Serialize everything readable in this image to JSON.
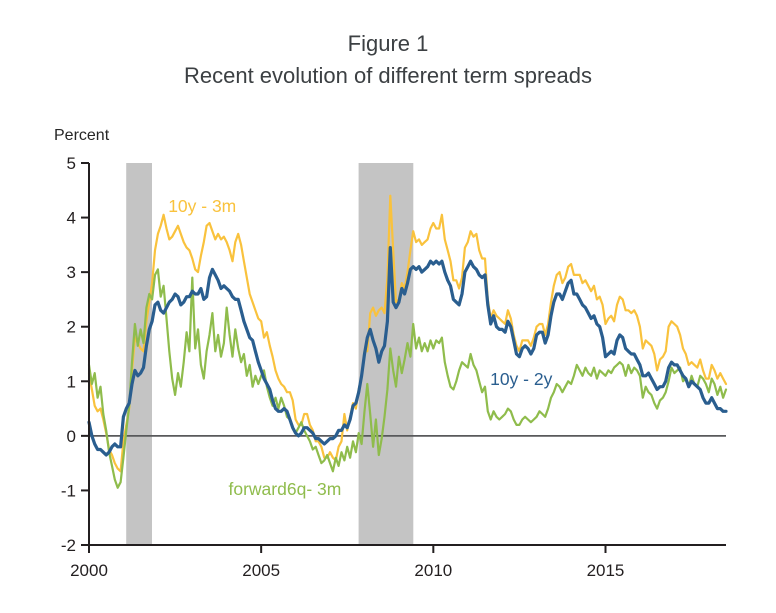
{
  "chart_data": {
    "type": "line",
    "title": "Figure 1",
    "subtitle": "Recent evolution of different term spreads",
    "ylabel": "Percent",
    "ylim": [
      -2,
      5
    ],
    "yticks": [
      5,
      4,
      3,
      2,
      1,
      0,
      -1,
      -2
    ],
    "xlim": [
      2000,
      2018.5
    ],
    "xticks": [
      2000,
      2005,
      2010,
      2015
    ],
    "x_start_year": 2000,
    "x_step_years": 0.0833333,
    "grid": false,
    "legend_position": "inline-labels",
    "zero_line_value": 0,
    "axis_color": "#231f20",
    "zero_line_color": "#58595b",
    "tick_label_color": "#231f20",
    "band_color": "#c4c4c4",
    "recession_bands": [
      {
        "start": 2001.08,
        "end": 2001.83
      },
      {
        "start": 2007.83,
        "end": 2009.42
      }
    ],
    "series": [
      {
        "id": "10y-3m",
        "name": "10y - 3m",
        "color": "#f9c23d",
        "line_width": 2.2,
        "label_x": 2002.3,
        "label_y": 4.1,
        "values": [
          1.15,
          0.85,
          0.55,
          0.45,
          0.5,
          0.3,
          0.05,
          -0.25,
          -0.35,
          -0.5,
          -0.6,
          -0.65,
          -0.1,
          0.2,
          0.5,
          1.2,
          1.8,
          1.7,
          1.6,
          1.55,
          2.1,
          2.45,
          2.8,
          3.4,
          3.7,
          3.85,
          4.05,
          3.8,
          3.6,
          3.65,
          3.75,
          3.85,
          3.7,
          3.55,
          3.45,
          3.4,
          3.25,
          3.05,
          3.0,
          3.3,
          3.55,
          3.85,
          3.9,
          3.75,
          3.6,
          3.7,
          3.6,
          3.65,
          3.55,
          3.4,
          3.2,
          3.55,
          3.7,
          3.5,
          3.2,
          2.9,
          2.6,
          2.45,
          2.3,
          2.15,
          2.1,
          1.8,
          1.9,
          1.65,
          1.45,
          1.2,
          1.05,
          0.95,
          0.9,
          0.8,
          0.8,
          0.65,
          0.3,
          0.2,
          0.2,
          0.4,
          0.4,
          0.2,
          0.1,
          -0.1,
          -0.1,
          -0.2,
          -0.4,
          -0.4,
          -0.3,
          -0.4,
          -0.45,
          -0.2,
          -0.1,
          0.4,
          0.1,
          0.35,
          0.6,
          0.5,
          0.85,
          1.1,
          1.55,
          1.55,
          2.25,
          2.35,
          2.2,
          2.3,
          2.35,
          2.25,
          2.9,
          4.4,
          3.4,
          2.45,
          2.5,
          2.8,
          2.7,
          3.0,
          3.4,
          3.75,
          3.55,
          3.6,
          3.5,
          3.55,
          3.6,
          3.8,
          3.9,
          3.8,
          3.8,
          4.05,
          3.6,
          3.4,
          3.2,
          2.85,
          2.85,
          2.7,
          2.9,
          3.45,
          3.55,
          3.75,
          3.65,
          3.7,
          3.4,
          3.25,
          3.25,
          2.5,
          2.15,
          2.3,
          2.2,
          2.15,
          2.1,
          2.05,
          2.3,
          2.15,
          1.85,
          1.65,
          1.55,
          1.75,
          1.75,
          1.75,
          1.65,
          1.8,
          2.0,
          2.05,
          2.05,
          1.85,
          2.05,
          2.45,
          2.75,
          2.95,
          3.0,
          2.8,
          2.9,
          3.1,
          3.15,
          2.95,
          2.95,
          2.95,
          2.8,
          2.85,
          2.75,
          2.65,
          2.75,
          2.5,
          2.55,
          2.4,
          2.05,
          2.15,
          2.2,
          2.1,
          2.4,
          2.55,
          2.5,
          2.3,
          2.3,
          2.25,
          2.3,
          2.2,
          2.0,
          1.6,
          1.75,
          1.7,
          1.65,
          1.5,
          1.2,
          1.4,
          1.45,
          1.55,
          2.0,
          2.1,
          2.05,
          2.0,
          1.85,
          1.6,
          1.5,
          1.3,
          1.35,
          1.3,
          1.25,
          1.4,
          1.2,
          1.05,
          1.05,
          1.3,
          1.2,
          1.05,
          1.15,
          1.05,
          0.95
        ]
      },
      {
        "id": "forward6q-3m",
        "name": "forward6q- 3m",
        "color": "#8fbc4c",
        "line_width": 2.2,
        "label_x": 2004.05,
        "label_y": -1.08,
        "values": [
          1.3,
          0.95,
          1.15,
          0.7,
          0.9,
          0.4,
          0.1,
          -0.3,
          -0.55,
          -0.8,
          -0.95,
          -0.85,
          -0.4,
          0.1,
          0.55,
          1.35,
          2.05,
          1.65,
          1.95,
          1.7,
          2.35,
          2.6,
          2.5,
          2.95,
          3.05,
          2.55,
          2.75,
          2.15,
          1.55,
          1.05,
          0.75,
          1.15,
          0.9,
          1.35,
          1.9,
          1.55,
          2.9,
          1.6,
          1.95,
          1.3,
          1.05,
          1.55,
          1.85,
          2.25,
          1.55,
          1.85,
          1.45,
          1.7,
          2.35,
          1.85,
          1.45,
          1.95,
          1.6,
          1.35,
          1.5,
          1.1,
          1.3,
          0.9,
          1.1,
          0.95,
          1.1,
          1.2,
          0.9,
          0.7,
          0.55,
          0.7,
          0.5,
          0.7,
          0.55,
          0.35,
          0.3,
          0.15,
          0.05,
          0.15,
          0.25,
          0.1,
          0.0,
          -0.1,
          -0.25,
          -0.2,
          -0.35,
          -0.5,
          -0.45,
          -0.35,
          -0.5,
          -0.65,
          -0.4,
          -0.55,
          -0.3,
          -0.45,
          -0.2,
          -0.4,
          -0.1,
          -0.3,
          0.05,
          -0.15,
          0.45,
          0.95,
          0.4,
          -0.2,
          0.3,
          -0.35,
          -0.05,
          0.35,
          0.85,
          1.6,
          1.2,
          0.9,
          1.45,
          1.15,
          1.4,
          1.7,
          1.45,
          2.05,
          1.6,
          1.8,
          1.55,
          1.7,
          1.55,
          1.75,
          1.6,
          1.75,
          1.7,
          1.8,
          1.35,
          1.1,
          0.9,
          0.85,
          1.0,
          1.2,
          1.35,
          1.3,
          1.25,
          1.5,
          1.3,
          1.2,
          1.0,
          0.8,
          0.9,
          0.45,
          0.3,
          0.45,
          0.35,
          0.3,
          0.35,
          0.4,
          0.5,
          0.45,
          0.3,
          0.2,
          0.2,
          0.3,
          0.35,
          0.3,
          0.25,
          0.3,
          0.35,
          0.45,
          0.4,
          0.35,
          0.5,
          0.7,
          0.8,
          0.95,
          0.9,
          0.8,
          0.9,
          1.0,
          0.95,
          1.1,
          1.3,
          1.2,
          1.1,
          1.25,
          1.15,
          1.1,
          1.25,
          1.05,
          1.2,
          1.15,
          1.1,
          1.2,
          1.15,
          1.25,
          1.3,
          1.35,
          1.3,
          1.1,
          1.3,
          1.15,
          1.25,
          1.2,
          1.1,
          0.7,
          0.9,
          0.8,
          0.75,
          0.6,
          0.5,
          0.65,
          0.7,
          0.8,
          1.0,
          1.25,
          1.15,
          1.2,
          1.25,
          1.0,
          1.05,
          0.9,
          1.1,
          0.95,
          0.9,
          1.1,
          1.05,
          0.95,
          0.8,
          1.05,
          0.95,
          0.75,
          0.9,
          0.7,
          0.85
        ]
      },
      {
        "id": "10y-2y",
        "name": "10y - 2y",
        "color": "#2a5e8f",
        "line_width": 3.2,
        "label_x": 2011.65,
        "label_y": 0.93,
        "values": [
          0.25,
          0.0,
          -0.15,
          -0.25,
          -0.25,
          -0.3,
          -0.35,
          -0.3,
          -0.2,
          -0.15,
          -0.2,
          -0.2,
          0.35,
          0.5,
          0.6,
          0.95,
          1.2,
          1.1,
          1.15,
          1.25,
          1.65,
          1.95,
          2.1,
          2.4,
          2.45,
          2.3,
          2.25,
          2.35,
          2.45,
          2.5,
          2.6,
          2.55,
          2.4,
          2.45,
          2.55,
          2.55,
          2.65,
          2.6,
          2.6,
          2.7,
          2.5,
          2.55,
          2.9,
          3.05,
          2.95,
          2.85,
          2.7,
          2.75,
          2.7,
          2.65,
          2.55,
          2.5,
          2.5,
          2.3,
          2.1,
          1.95,
          1.8,
          1.75,
          1.55,
          1.35,
          1.2,
          1.05,
          0.95,
          0.85,
          0.65,
          0.5,
          0.45,
          0.45,
          0.5,
          0.45,
          0.3,
          0.15,
          0.05,
          0.0,
          0.05,
          0.15,
          0.15,
          0.1,
          0.05,
          -0.05,
          -0.05,
          -0.1,
          -0.15,
          -0.1,
          -0.05,
          -0.05,
          0.0,
          0.1,
          0.1,
          0.2,
          0.15,
          0.3,
          0.55,
          0.6,
          0.8,
          1.1,
          1.5,
          1.8,
          1.95,
          1.75,
          1.6,
          1.35,
          1.55,
          1.65,
          2.1,
          3.45,
          2.45,
          2.35,
          2.45,
          2.7,
          2.6,
          2.8,
          3.05,
          3.1,
          3.05,
          3.1,
          3.0,
          3.05,
          3.1,
          3.2,
          3.15,
          3.2,
          3.15,
          3.2,
          3.0,
          2.85,
          2.75,
          2.5,
          2.45,
          2.4,
          2.6,
          3.0,
          3.1,
          3.2,
          3.1,
          3.05,
          2.95,
          2.9,
          2.95,
          2.4,
          2.05,
          2.2,
          2.0,
          1.95,
          1.95,
          1.9,
          2.1,
          2.0,
          1.75,
          1.5,
          1.45,
          1.6,
          1.65,
          1.6,
          1.5,
          1.6,
          1.85,
          1.9,
          1.9,
          1.7,
          1.85,
          2.2,
          2.45,
          2.6,
          2.6,
          2.5,
          2.65,
          2.8,
          2.85,
          2.6,
          2.6,
          2.5,
          2.4,
          2.35,
          2.25,
          2.15,
          2.2,
          2.05,
          2.0,
          1.8,
          1.45,
          1.5,
          1.55,
          1.5,
          1.75,
          1.85,
          1.8,
          1.6,
          1.55,
          1.5,
          1.5,
          1.4,
          1.3,
          1.1,
          1.1,
          1.15,
          1.05,
          0.95,
          0.85,
          0.9,
          0.9,
          1.0,
          1.25,
          1.35,
          1.3,
          1.3,
          1.2,
          1.1,
          1.05,
          0.9,
          1.0,
          0.95,
          0.9,
          0.85,
          0.7,
          0.6,
          0.6,
          0.7,
          0.6,
          0.5,
          0.5,
          0.45,
          0.45
        ]
      }
    ]
  }
}
